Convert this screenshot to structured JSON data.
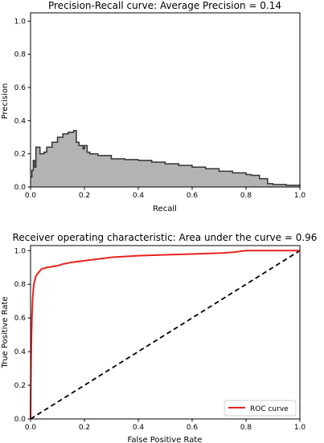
{
  "chart_data": [
    {
      "type": "area",
      "title": "Precision-Recall curve: Average Precision =      0.14",
      "xlabel": "Recall",
      "ylabel": "Precision",
      "xlim": [
        0,
        1
      ],
      "ylim": [
        0,
        1.05
      ],
      "xticks": [
        "0.0",
        "0.2",
        "0.4",
        "0.6",
        "0.8",
        "1.0"
      ],
      "yticks": [
        "0.0",
        "0.2",
        "0.4",
        "0.6",
        "0.8",
        "1.0"
      ],
      "grid": false,
      "fill_color": "#b3b3b3",
      "line_color": "#333333",
      "series": [
        {
          "x": [
            0.0,
            0.005,
            0.01,
            0.015,
            0.02,
            0.03,
            0.035,
            0.05,
            0.06,
            0.08,
            0.1,
            0.12,
            0.14,
            0.155,
            0.16,
            0.17,
            0.18,
            0.195,
            0.2,
            0.21,
            0.22,
            0.25,
            0.3,
            0.35,
            0.4,
            0.45,
            0.5,
            0.55,
            0.6,
            0.65,
            0.7,
            0.75,
            0.8,
            0.82,
            0.85,
            0.88,
            0.9,
            0.95,
            1.0
          ],
          "y": [
            0.06,
            0.1,
            0.16,
            0.12,
            0.24,
            0.24,
            0.2,
            0.21,
            0.24,
            0.27,
            0.3,
            0.32,
            0.33,
            0.33,
            0.34,
            0.27,
            0.25,
            0.23,
            0.25,
            0.21,
            0.2,
            0.19,
            0.17,
            0.165,
            0.16,
            0.15,
            0.14,
            0.13,
            0.12,
            0.11,
            0.095,
            0.085,
            0.075,
            0.07,
            0.05,
            0.02,
            0.015,
            0.01,
            0.005
          ]
        }
      ]
    },
    {
      "type": "line",
      "title": "Receiver operating characteristic:     Area under the curve = 0.96",
      "xlabel": "False Positive Rate",
      "ylabel": "True Positive Rate",
      "xlim": [
        0,
        1
      ],
      "ylim": [
        0,
        1.03
      ],
      "xticks": [
        "0.0",
        "0.2",
        "0.4",
        "0.6",
        "0.8",
        "1.0"
      ],
      "yticks": [
        "0.0",
        "0.2",
        "0.4",
        "0.6",
        "0.8",
        "1.0"
      ],
      "grid": false,
      "legend_position": "lower-right",
      "series": [
        {
          "name": "ROC curve",
          "color": "#e8231c",
          "x": [
            0.0,
            0.001,
            0.003,
            0.005,
            0.008,
            0.012,
            0.02,
            0.03,
            0.04,
            0.05,
            0.06,
            0.08,
            0.1,
            0.12,
            0.15,
            0.2,
            0.25,
            0.3,
            0.4,
            0.5,
            0.6,
            0.7,
            0.75,
            0.8,
            1.0
          ],
          "y": [
            0.0,
            0.2,
            0.45,
            0.6,
            0.72,
            0.8,
            0.85,
            0.87,
            0.89,
            0.895,
            0.9,
            0.905,
            0.91,
            0.92,
            0.93,
            0.94,
            0.95,
            0.96,
            0.97,
            0.975,
            0.98,
            0.985,
            0.99,
            1.0,
            1.0
          ]
        },
        {
          "name": "",
          "color": "#000000",
          "style": "dashed",
          "x": [
            0.0,
            1.0
          ],
          "y": [
            0.0,
            1.0
          ]
        }
      ]
    }
  ]
}
